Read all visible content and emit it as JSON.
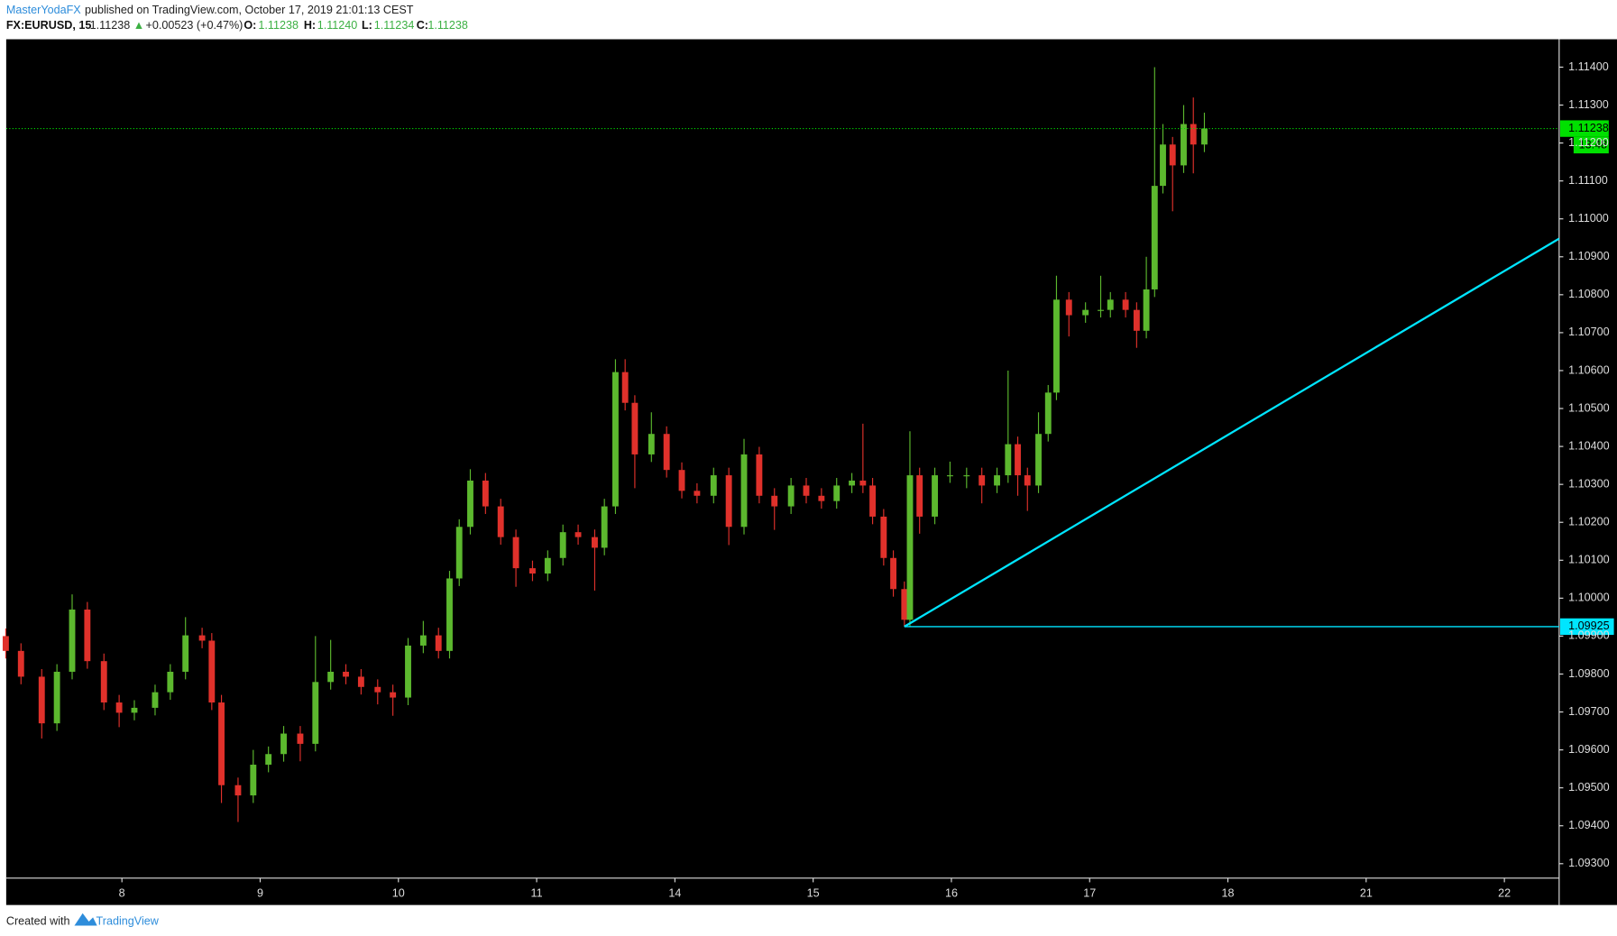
{
  "chart_data": {
    "type": "candlestick",
    "publisher": "MasterYodaFX",
    "published": "published on TradingView.com, October 17, 2019 21:01:13 CEST",
    "symbol": "FX:EURUSD, 15",
    "last_label": "1.11238",
    "arrow": "▲",
    "change": "+0.00523 (+0.47%)",
    "ohlc_header": [
      {
        "key": "O:",
        "value": "1.11238"
      },
      {
        "key": "H:",
        "value": "1.11240"
      },
      {
        "key": "L:",
        "value": "1.11234"
      },
      {
        "key": "C:",
        "value": "1.11238"
      }
    ],
    "up_color": "#5cb82e",
    "down_color": "#e0312b",
    "xlim": [
      -0.837,
      10.396
    ],
    "xticks": [
      {
        "value": 0,
        "label": "8"
      },
      {
        "value": 1,
        "label": "9"
      },
      {
        "value": 2,
        "label": "10"
      },
      {
        "value": 3,
        "label": "11"
      },
      {
        "value": 4,
        "label": "14"
      },
      {
        "value": 5,
        "label": "15"
      },
      {
        "value": 6,
        "label": "16"
      },
      {
        "value": 7,
        "label": "17"
      },
      {
        "value": 8,
        "label": "18"
      },
      {
        "value": 9,
        "label": "21"
      },
      {
        "value": 10,
        "label": "22"
      }
    ],
    "ylim": [
      1.092619,
      1.114735
    ],
    "yticks": [
      {
        "value": 1.093,
        "label": "1.09300"
      },
      {
        "value": 1.094,
        "label": "1.09400"
      },
      {
        "value": 1.095,
        "label": "1.09500"
      },
      {
        "value": 1.096,
        "label": "1.09600"
      },
      {
        "value": 1.097,
        "label": "1.09700"
      },
      {
        "value": 1.098,
        "label": "1.09800"
      },
      {
        "value": 1.099,
        "label": "1.09900"
      },
      {
        "value": 1.1,
        "label": "1.10000"
      },
      {
        "value": 1.101,
        "label": "1.10100"
      },
      {
        "value": 1.102,
        "label": "1.10200"
      },
      {
        "value": 1.103,
        "label": "1.10300"
      },
      {
        "value": 1.104,
        "label": "1.10400"
      },
      {
        "value": 1.105,
        "label": "1.10500"
      },
      {
        "value": 1.106,
        "label": "1.10600"
      },
      {
        "value": 1.107,
        "label": "1.10700"
      },
      {
        "value": 1.108,
        "label": "1.10800"
      },
      {
        "value": 1.109,
        "label": "1.10900"
      },
      {
        "value": 1.11,
        "label": "1.11000"
      },
      {
        "value": 1.111,
        "label": "1.11100"
      },
      {
        "value": 1.112,
        "label": "1.11200"
      },
      {
        "value": 1.113,
        "label": "1.11300"
      },
      {
        "value": 1.114,
        "label": "1.11400"
      }
    ],
    "x": [
      -0.84,
      -0.73,
      -0.58,
      -0.47,
      -0.36,
      -0.25,
      -0.13,
      -0.02,
      0.09,
      0.24,
      0.35,
      0.46,
      0.58,
      0.65,
      0.72,
      0.84,
      0.95,
      1.06,
      1.17,
      1.29,
      1.4,
      1.51,
      1.62,
      1.73,
      1.85,
      1.96,
      2.07,
      2.18,
      2.29,
      2.37,
      2.44,
      2.52,
      2.63,
      2.74,
      2.85,
      2.97,
      3.08,
      3.19,
      3.3,
      3.42,
      3.49,
      3.57,
      3.64,
      3.71,
      3.83,
      3.94,
      4.05,
      4.16,
      4.28,
      4.39,
      4.5,
      4.61,
      4.72,
      4.84,
      4.95,
      5.06,
      5.17,
      5.28,
      5.36,
      5.43,
      5.51,
      5.58,
      5.66,
      5.7,
      5.77,
      5.88,
      5.99,
      6.11,
      6.22,
      6.33,
      6.41,
      6.48,
      6.55,
      6.63,
      6.7,
      6.76,
      6.85,
      6.97,
      7.08,
      7.15,
      7.26,
      7.34,
      7.41,
      7.47,
      7.53,
      7.6,
      7.68,
      7.75,
      7.83
    ],
    "ohlc": [
      [
        1.099,
        1.0992,
        1.09841,
        1.09861
      ],
      [
        1.09861,
        1.09881,
        1.09773,
        1.09793
      ],
      [
        1.09793,
        1.09813,
        1.0963,
        1.0967
      ],
      [
        1.0967,
        1.09826,
        1.0965,
        1.09806
      ],
      [
        1.09806,
        1.1001,
        1.09786,
        1.0997
      ],
      [
        1.0997,
        1.0999,
        1.09814,
        1.09834
      ],
      [
        1.09834,
        1.09854,
        1.09705,
        1.09725
      ],
      [
        1.09725,
        1.09745,
        1.0966,
        1.09698
      ],
      [
        1.09698,
        1.09731,
        1.09678,
        1.09711
      ],
      [
        1.09711,
        1.09772,
        1.09691,
        1.09752
      ],
      [
        1.09752,
        1.09826,
        1.09732,
        1.09806
      ],
      [
        1.09806,
        1.0995,
        1.09786,
        1.09902
      ],
      [
        1.09902,
        1.09922,
        1.09868,
        1.09888
      ],
      [
        1.09888,
        1.09908,
        1.09705,
        1.09725
      ],
      [
        1.09725,
        1.09745,
        1.0946,
        1.09507
      ],
      [
        1.09507,
        1.09527,
        1.0941,
        1.0948
      ],
      [
        1.0948,
        1.096,
        1.0946,
        1.09561
      ],
      [
        1.09561,
        1.09609,
        1.09541,
        1.09589
      ],
      [
        1.09589,
        1.09663,
        1.09569,
        1.09643
      ],
      [
        1.09643,
        1.09663,
        1.0957,
        1.09616
      ],
      [
        1.09616,
        1.099,
        1.09596,
        1.09779
      ],
      [
        1.09779,
        1.0989,
        1.09759,
        1.09806
      ],
      [
        1.09806,
        1.09826,
        1.09773,
        1.09793
      ],
      [
        1.09793,
        1.09813,
        1.09746,
        1.09766
      ],
      [
        1.09766,
        1.09786,
        1.0972,
        1.09752
      ],
      [
        1.09752,
        1.09772,
        1.0969,
        1.09738
      ],
      [
        1.09738,
        1.09895,
        1.09718,
        1.09875
      ],
      [
        1.09875,
        1.0994,
        1.09855,
        1.09902
      ],
      [
        1.09902,
        1.09922,
        1.09841,
        1.09861
      ],
      [
        1.09861,
        1.10072,
        1.09841,
        1.10052
      ],
      [
        1.10052,
        1.10208,
        1.10032,
        1.10188
      ],
      [
        1.10188,
        1.1034,
        1.10168,
        1.1031
      ],
      [
        1.1031,
        1.1033,
        1.10222,
        1.10242
      ],
      [
        1.10242,
        1.10262,
        1.10141,
        1.10161
      ],
      [
        1.10161,
        1.10181,
        1.1003,
        1.10079
      ],
      [
        1.10079,
        1.10099,
        1.10045,
        1.10065
      ],
      [
        1.10065,
        1.10126,
        1.10045,
        1.10106
      ],
      [
        1.10106,
        1.10194,
        1.10086,
        1.10174
      ],
      [
        1.10174,
        1.10194,
        1.10141,
        1.10161
      ],
      [
        1.10161,
        1.10181,
        1.1002,
        1.10133
      ],
      [
        1.10133,
        1.10262,
        1.10113,
        1.10242
      ],
      [
        1.10242,
        1.1063,
        1.10222,
        1.10596
      ],
      [
        1.10596,
        1.1063,
        1.10495,
        1.10515
      ],
      [
        1.10515,
        1.10535,
        1.1029,
        1.10379
      ],
      [
        1.10379,
        1.1049,
        1.10359,
        1.10433
      ],
      [
        1.10433,
        1.10453,
        1.10318,
        1.10338
      ],
      [
        1.10338,
        1.10358,
        1.10263,
        1.10283
      ],
      [
        1.10283,
        1.10303,
        1.1025,
        1.1027
      ],
      [
        1.1027,
        1.10344,
        1.1025,
        1.10324
      ],
      [
        1.10324,
        1.10344,
        1.1014,
        1.10188
      ],
      [
        1.10188,
        1.1042,
        1.10168,
        1.10379
      ],
      [
        1.10379,
        1.10399,
        1.1025,
        1.1027
      ],
      [
        1.1027,
        1.1029,
        1.1018,
        1.10242
      ],
      [
        1.10242,
        1.10317,
        1.10222,
        1.10297
      ],
      [
        1.10297,
        1.10317,
        1.1025,
        1.1027
      ],
      [
        1.1027,
        1.1029,
        1.10236,
        1.10256
      ],
      [
        1.10256,
        1.10317,
        1.10236,
        1.10297
      ],
      [
        1.10297,
        1.1033,
        1.10277,
        1.1031
      ],
      [
        1.1031,
        1.1046,
        1.10277,
        1.10297
      ],
      [
        1.10297,
        1.10317,
        1.10195,
        1.10215
      ],
      [
        1.10215,
        1.10235,
        1.10086,
        1.10106
      ],
      [
        1.10106,
        1.10126,
        1.10004,
        1.10024
      ],
      [
        1.10024,
        1.10044,
        1.09925,
        1.09943
      ],
      [
        1.09943,
        1.1044,
        1.09925,
        1.10324
      ],
      [
        1.10324,
        1.10344,
        1.1017,
        1.10215
      ],
      [
        1.10215,
        1.10344,
        1.10195,
        1.10324
      ],
      [
        1.10324,
        1.1036,
        1.10304,
        1.10324
      ],
      [
        1.10324,
        1.10344,
        1.1029,
        1.10324
      ],
      [
        1.10324,
        1.10344,
        1.1025,
        1.10297
      ],
      [
        1.10297,
        1.10344,
        1.10277,
        1.10324
      ],
      [
        1.10324,
        1.106,
        1.10304,
        1.10406
      ],
      [
        1.10406,
        1.10426,
        1.1027,
        1.10324
      ],
      [
        1.10324,
        1.10344,
        1.1023,
        1.10297
      ],
      [
        1.10297,
        1.1049,
        1.10277,
        1.10433
      ],
      [
        1.10433,
        1.10562,
        1.10413,
        1.10542
      ],
      [
        1.10542,
        1.1085,
        1.10522,
        1.10787
      ],
      [
        1.10787,
        1.10807,
        1.1069,
        1.10746
      ],
      [
        1.10746,
        1.1078,
        1.10726,
        1.1076
      ],
      [
        1.1076,
        1.1085,
        1.1074,
        1.1076
      ],
      [
        1.1076,
        1.10807,
        1.1074,
        1.10787
      ],
      [
        1.10787,
        1.10807,
        1.1074,
        1.1076
      ],
      [
        1.1076,
        1.1078,
        1.1066,
        1.10705
      ],
      [
        1.10705,
        1.109,
        1.10685,
        1.10814
      ],
      [
        1.10814,
        1.114,
        1.10794,
        1.11087
      ],
      [
        1.11087,
        1.1125,
        1.11067,
        1.11196
      ],
      [
        1.11196,
        1.11216,
        1.1102,
        1.11141
      ],
      [
        1.11141,
        1.113,
        1.11121,
        1.1125
      ],
      [
        1.1125,
        1.1132,
        1.1112,
        1.11196
      ],
      [
        1.11196,
        1.1128,
        1.11176,
        1.11238
      ]
    ],
    "last_price": 1.11238,
    "last_price_color": "#00e000",
    "countdown": "13:48",
    "support_level": 1.09925,
    "support_x": 5.66,
    "trend_line": {
      "x": [
        5.66,
        10.396
      ],
      "y": [
        1.09925,
        1.10948
      ]
    },
    "drawing_color": "#00e5ff"
  },
  "footer": {
    "prefix": "Created with",
    "brand": "TradingView"
  }
}
